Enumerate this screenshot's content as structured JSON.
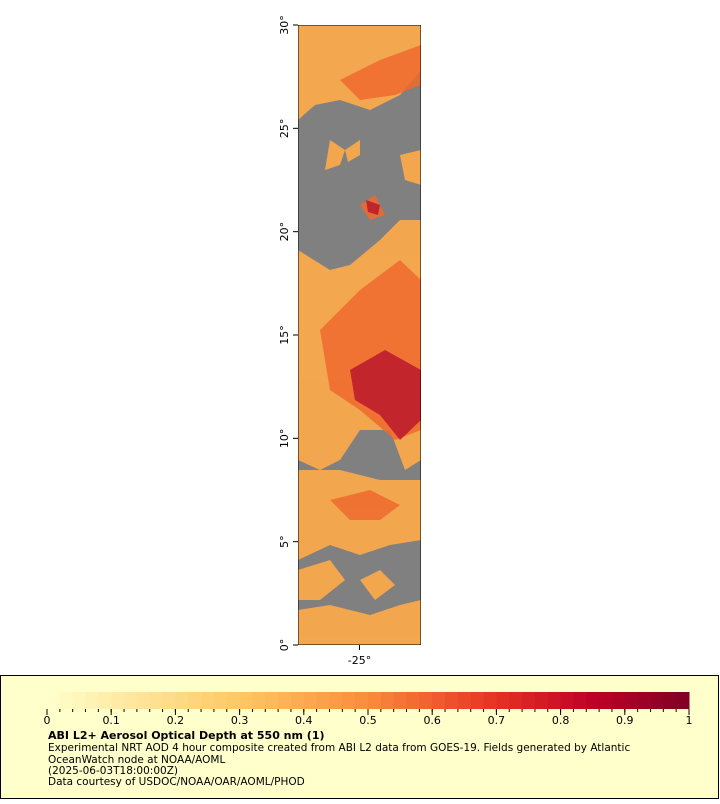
{
  "chart_data": {
    "type": "map",
    "title": "ABI L2+ Aerosol Optical Depth at 550 nm (1)",
    "caption": [
      "Experimental NRT AOD 4 hour composite created from ABI L2 data from GOES-19. Fields generated by Atlantic",
      "OceanWatch node at NOAA/AOML",
      "(2025-06-03T18:00:00Z)",
      "Data courtesy of USDOC/NOAA/OAR/AOML/PHOD"
    ],
    "xlim": [
      -28,
      -22
    ],
    "ylim": [
      0,
      30
    ],
    "xticks": [
      {
        "value": -25,
        "label": "-25°"
      }
    ],
    "yticks": [
      {
        "value": 0,
        "label": "0°"
      },
      {
        "value": 5,
        "label": "5°"
      },
      {
        "value": 10,
        "label": "10°"
      },
      {
        "value": 15,
        "label": "15°"
      },
      {
        "value": 20,
        "label": "20°"
      },
      {
        "value": 25,
        "label": "25°"
      },
      {
        "value": 30,
        "label": "30°"
      }
    ],
    "colorbar_ticks": [
      0,
      0.1,
      0.2,
      0.3,
      0.4,
      0.5,
      0.6,
      0.7,
      0.8,
      0.9,
      1
    ]
  }
}
